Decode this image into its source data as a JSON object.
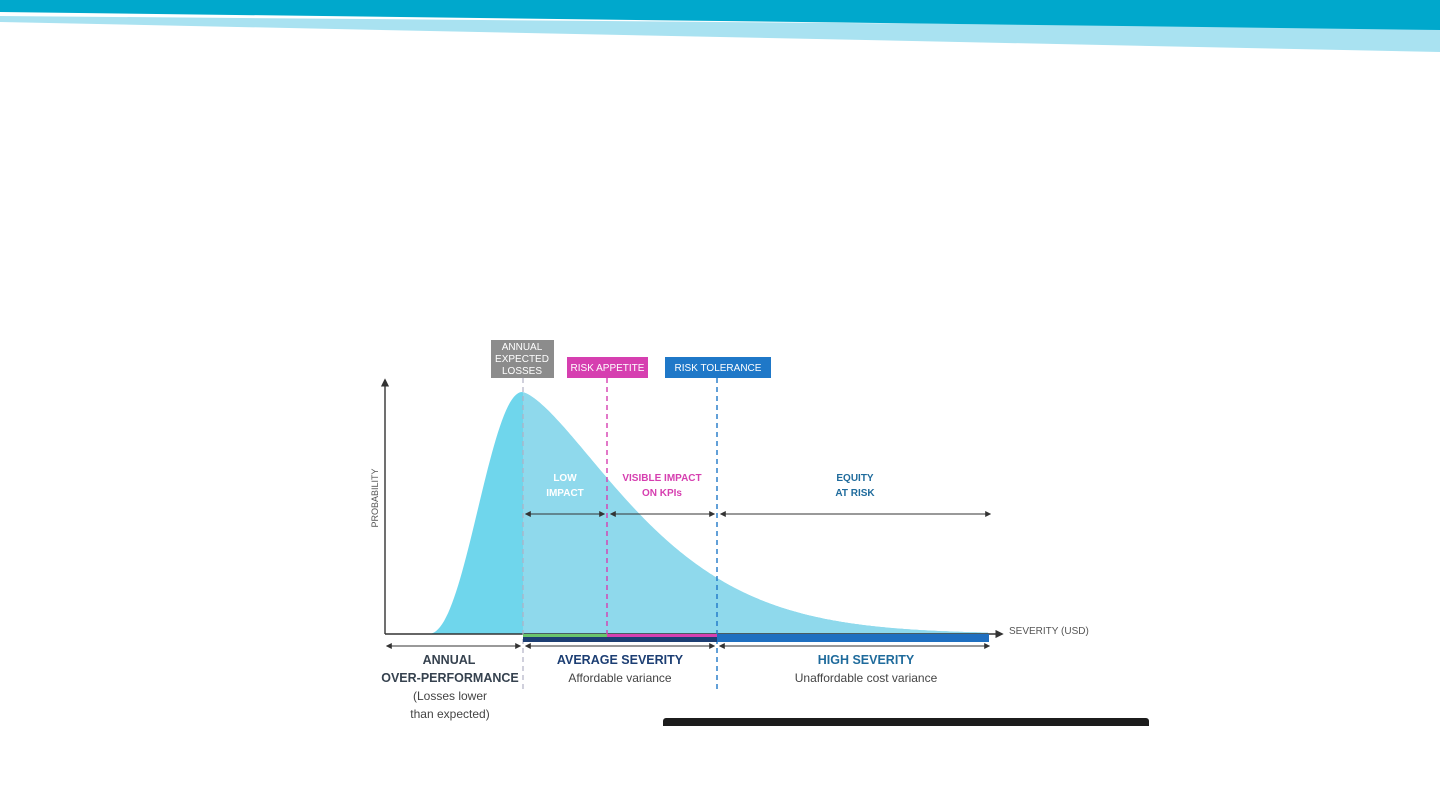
{
  "colors": {
    "banner_dark": "#00a8cc",
    "banner_light": "#a9e2f1",
    "curve_fill": "#6fd6ec",
    "curve_fill_light": "#8fd9ec",
    "expected_losses": "#8c8c8c",
    "risk_appetite": "#d63fb0",
    "risk_tolerance": "#1f78c8",
    "low_impact_bar": "#6ac46a",
    "average_bar": "#1c3e73",
    "high_bar": "#1f6fc0",
    "axis": "#333333",
    "text_dark": "#36424f",
    "text_blue": "#1f6b9c",
    "text_white": "#ffffff"
  },
  "chart_data": {
    "type": "area",
    "xlabel": "SEVERITY (USD)",
    "ylabel": "PROBABILITY",
    "markers": [
      {
        "label_lines": [
          "ANNUAL",
          "EXPECTED",
          "LOSSES"
        ],
        "color": "expected_losses"
      },
      {
        "label_lines": [
          "RISK APPETITE"
        ],
        "color": "risk_appetite"
      },
      {
        "label_lines": [
          "RISK TOLERANCE"
        ],
        "color": "risk_tolerance"
      }
    ],
    "zones": [
      {
        "label_lines": [
          "LOW",
          "IMPACT"
        ],
        "color": "text_white"
      },
      {
        "label_lines": [
          "VISIBLE IMPACT",
          "ON KPIs"
        ],
        "color": "risk_appetite"
      },
      {
        "label_lines": [
          "EQUITY",
          "AT RISK"
        ],
        "color": "text_blue"
      }
    ],
    "bottom_groups": [
      {
        "title_lines": [
          "ANNUAL",
          "OVER-PERFORMANCE"
        ],
        "subtitle_lines": [
          "(Losses lower",
          "than expected)"
        ],
        "title_color": "text_dark"
      },
      {
        "title_lines": [
          "AVERAGE SEVERITY"
        ],
        "subtitle_lines": [
          "Affordable variance"
        ],
        "title_color": "average_bar"
      },
      {
        "title_lines": [
          "HIGH SEVERITY"
        ],
        "subtitle_lines": [
          "Unaffordable cost variance"
        ],
        "title_color": "text_blue"
      }
    ]
  }
}
